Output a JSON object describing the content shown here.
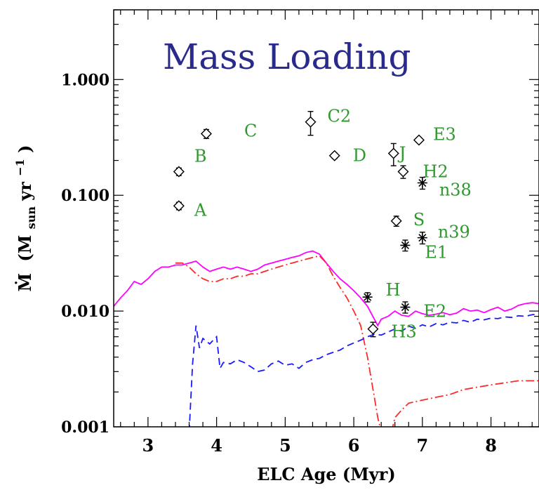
{
  "chart_data": {
    "type": "scatter",
    "title": "Mass Loading",
    "xlabel": "ELC Age (Myr)",
    "ylabel": "Ṁ (M_sun yr⁻¹)",
    "ylabel_parts": {
      "symbol": "Ṁ",
      "open": "(M",
      "sub": "sun",
      "mid": " yr",
      "sup": "−1",
      "close": ")"
    },
    "xlim": [
      2.5,
      8.7
    ],
    "ylim": [
      0.001,
      4
    ],
    "yscale": "log",
    "x_ticks": [
      3,
      4,
      5,
      6,
      7,
      8
    ],
    "x_tick_labels": [
      "3",
      "4",
      "5",
      "6",
      "7",
      "8"
    ],
    "y_ticks": [
      0.001,
      0.01,
      0.1,
      1
    ],
    "y_tick_labels": [
      "0.001",
      "0.010",
      "0.100",
      "1.000"
    ],
    "colors": {
      "title": "#2a2a8c",
      "labels": "#2e9a2e",
      "magenta": "#ff00ff",
      "red": "#ff2a2a",
      "blue": "#1a1aff",
      "axes": "#000000"
    },
    "points": [
      {
        "label": "A",
        "x": 3.45,
        "y": 0.081,
        "err": 0.006,
        "marker": "diamond"
      },
      {
        "label": "B",
        "x": 3.45,
        "y": 0.16,
        "err": 0.012,
        "marker": "diamond"
      },
      {
        "label": "C",
        "x": 3.85,
        "y": 0.34,
        "err": 0.03,
        "marker": "diamond"
      },
      {
        "label": "C2",
        "x": 5.37,
        "y": 0.43,
        "err": 0.1,
        "marker": "diamond"
      },
      {
        "label": "D",
        "x": 5.72,
        "y": 0.22,
        "err": 0.012,
        "marker": "diamond"
      },
      {
        "label": "J",
        "x": 6.58,
        "y": 0.23,
        "err": 0.05,
        "marker": "diamond"
      },
      {
        "label": "E3",
        "x": 6.95,
        "y": 0.3,
        "err": 0.015,
        "marker": "diamond"
      },
      {
        "label": "H2",
        "x": 6.72,
        "y": 0.16,
        "err": 0.02,
        "marker": "diamond"
      },
      {
        "label": "n38",
        "x": 7.0,
        "y": 0.128,
        "err": 0.015,
        "marker": "star"
      },
      {
        "label": "S",
        "x": 6.62,
        "y": 0.06,
        "err": 0.006,
        "marker": "diamond"
      },
      {
        "label": "n39",
        "x": 7.0,
        "y": 0.043,
        "err": 0.005,
        "marker": "star"
      },
      {
        "label": "E1",
        "x": 6.75,
        "y": 0.037,
        "err": 0.004,
        "marker": "star"
      },
      {
        "label": "H",
        "x": 6.2,
        "y": 0.0132,
        "err": 0.0012,
        "marker": "star"
      },
      {
        "label": "E2",
        "x": 6.75,
        "y": 0.0108,
        "err": 0.0012,
        "marker": "star"
      },
      {
        "label": "H3",
        "x": 6.28,
        "y": 0.007,
        "err": 0.001,
        "marker": "diamond"
      }
    ],
    "series": [
      {
        "color": "magenta",
        "style": "solid",
        "x": [
          2.5,
          2.6,
          2.7,
          2.8,
          2.9,
          3.0,
          3.1,
          3.2,
          3.3,
          3.4,
          3.5,
          3.6,
          3.7,
          3.8,
          3.9,
          4.0,
          4.1,
          4.2,
          4.3,
          4.4,
          4.5,
          4.6,
          4.7,
          4.8,
          4.9,
          5.0,
          5.1,
          5.2,
          5.3,
          5.4,
          5.5,
          5.6,
          5.7,
          5.8,
          5.9,
          6.0,
          6.1,
          6.2,
          6.3,
          6.35,
          6.4,
          6.5,
          6.6,
          6.7,
          6.8,
          6.9,
          7.0,
          7.1,
          7.2,
          7.3,
          7.4,
          7.5,
          7.6,
          7.7,
          7.8,
          7.9,
          8.0,
          8.1,
          8.2,
          8.3,
          8.4,
          8.5,
          8.6,
          8.7
        ],
        "y": [
          0.011,
          0.013,
          0.015,
          0.018,
          0.017,
          0.019,
          0.022,
          0.024,
          0.024,
          0.025,
          0.025,
          0.026,
          0.027,
          0.024,
          0.022,
          0.023,
          0.024,
          0.023,
          0.024,
          0.023,
          0.022,
          0.023,
          0.025,
          0.026,
          0.027,
          0.028,
          0.029,
          0.03,
          0.032,
          0.033,
          0.031,
          0.026,
          0.022,
          0.019,
          0.017,
          0.015,
          0.013,
          0.011,
          0.0085,
          0.0075,
          0.0085,
          0.009,
          0.01,
          0.0092,
          0.009,
          0.01,
          0.0095,
          0.0092,
          0.0094,
          0.0097,
          0.0093,
          0.0096,
          0.0105,
          0.01,
          0.0102,
          0.0097,
          0.0103,
          0.0108,
          0.01,
          0.0104,
          0.0112,
          0.0116,
          0.0118,
          0.0116
        ]
      },
      {
        "color": "red",
        "style": "dashdot",
        "x": [
          3.4,
          3.5,
          3.6,
          3.7,
          3.8,
          3.9,
          4.0,
          4.1,
          4.2,
          4.3,
          4.4,
          4.5,
          4.6,
          4.7,
          4.8,
          4.9,
          5.0,
          5.1,
          5.2,
          5.3,
          5.4,
          5.5,
          5.6,
          5.7,
          5.8,
          5.9,
          6.0,
          6.1,
          6.2,
          6.3,
          6.35,
          6.4
        ],
        "y": [
          0.026,
          0.026,
          0.024,
          0.021,
          0.019,
          0.018,
          0.018,
          0.019,
          0.019,
          0.02,
          0.02,
          0.021,
          0.021,
          0.022,
          0.023,
          0.024,
          0.025,
          0.026,
          0.027,
          0.028,
          0.029,
          0.03,
          0.026,
          0.02,
          0.016,
          0.013,
          0.01,
          0.0075,
          0.004,
          0.0018,
          0.0012,
          0.0009
        ]
      },
      {
        "color": "red",
        "style": "dashdot",
        "x": [
          6.55,
          6.6,
          6.7,
          6.8,
          6.9,
          7.0,
          7.2,
          7.4,
          7.6,
          7.8,
          8.0,
          8.2,
          8.4,
          8.6,
          8.7
        ],
        "y": [
          0.0009,
          0.0012,
          0.0014,
          0.0016,
          0.00165,
          0.0017,
          0.0018,
          0.0019,
          0.0021,
          0.0022,
          0.0023,
          0.0024,
          0.0025,
          0.0025,
          0.0025
        ]
      },
      {
        "color": "blue",
        "style": "dashed",
        "x": [
          3.6,
          3.65,
          3.7,
          3.75,
          3.8,
          3.9,
          4.0,
          4.05,
          4.1,
          4.2,
          4.3,
          4.4,
          4.5,
          4.6,
          4.7,
          4.8,
          4.9,
          5.0,
          5.1,
          5.2,
          5.3,
          5.4,
          5.5,
          5.6,
          5.7,
          5.8,
          5.9,
          6.0,
          6.1,
          6.2,
          6.3,
          6.4,
          6.5,
          6.6,
          6.7,
          6.8,
          6.9,
          7.0,
          7.1,
          7.2,
          7.3,
          7.4,
          7.5,
          7.6,
          7.7,
          7.8,
          7.9,
          8.0,
          8.1,
          8.2,
          8.3,
          8.4,
          8.5,
          8.6,
          8.7
        ],
        "y": [
          0.0009,
          0.0035,
          0.0075,
          0.0048,
          0.0058,
          0.0052,
          0.006,
          0.0032,
          0.0036,
          0.0035,
          0.0038,
          0.0036,
          0.0033,
          0.003,
          0.0031,
          0.0035,
          0.0037,
          0.0034,
          0.0035,
          0.0032,
          0.0036,
          0.0038,
          0.0039,
          0.0042,
          0.0044,
          0.0046,
          0.005,
          0.0053,
          0.0056,
          0.006,
          0.0063,
          0.0062,
          0.0066,
          0.007,
          0.0067,
          0.0074,
          0.0071,
          0.0076,
          0.0073,
          0.0078,
          0.0076,
          0.008,
          0.0079,
          0.0083,
          0.008,
          0.0085,
          0.0084,
          0.0087,
          0.0086,
          0.0089,
          0.0088,
          0.0091,
          0.009,
          0.0093,
          0.0094
        ]
      }
    ]
  }
}
